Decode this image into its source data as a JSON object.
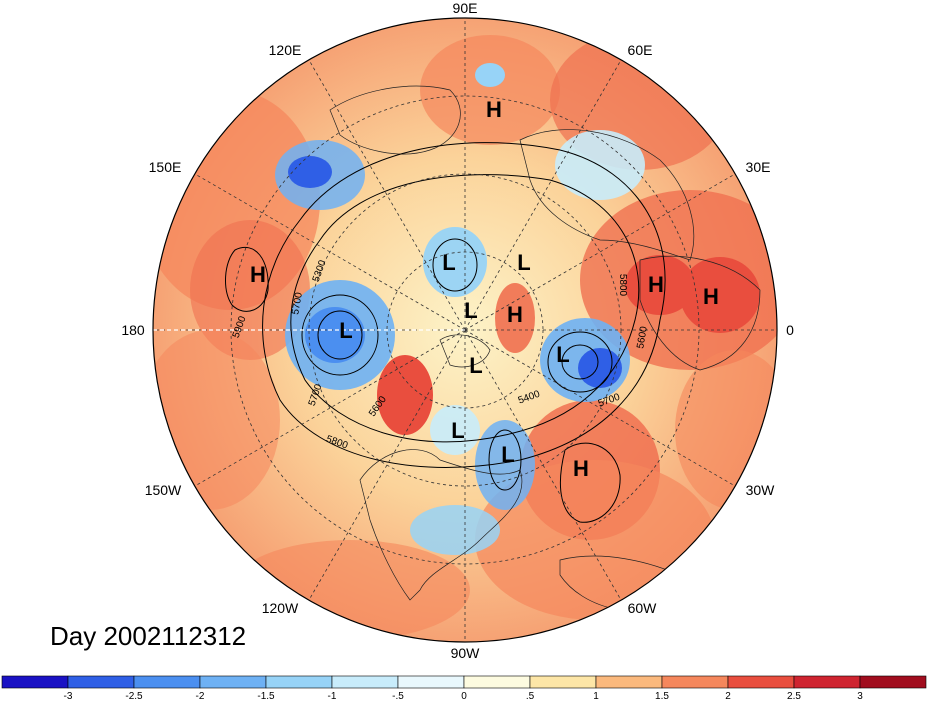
{
  "day_label": "Day 2002112312",
  "longitude_labels": [
    "90E",
    "120E",
    "60E",
    "150E",
    "30E",
    "180",
    "0",
    "150W",
    "30W",
    "120W",
    "60W",
    "90W"
  ],
  "centers": [
    {
      "type": "H"
    },
    {
      "type": "H"
    },
    {
      "type": "H"
    },
    {
      "type": "H"
    },
    {
      "type": "H"
    },
    {
      "type": "H"
    },
    {
      "type": "L"
    },
    {
      "type": "L"
    },
    {
      "type": "L"
    },
    {
      "type": "L"
    },
    {
      "type": "L"
    },
    {
      "type": "L"
    },
    {
      "type": "L"
    },
    {
      "type": "L"
    }
  ],
  "contour_labels": [
    "5300",
    "5700",
    "5900",
    "5800",
    "5600",
    "5700",
    "5800",
    "5400",
    "5700",
    "5800",
    "5600"
  ],
  "colorbar": {
    "ticks": [
      "-3",
      "-2.5",
      "-2",
      "-1.5",
      "-1",
      "-.5",
      "0",
      ".5",
      "1",
      "1.5",
      "2",
      "2.5",
      "3"
    ],
    "colors": [
      "#1a12c4",
      "#2f5fe6",
      "#4b8ff0",
      "#6eb1f4",
      "#97d3f7",
      "#c8ecfb",
      "#e9f8fd",
      "#fdfbe0",
      "#fde6a7",
      "#fbb97d",
      "#f5875c",
      "#e94e3e",
      "#cf2430",
      "#a10d1e"
    ]
  }
}
